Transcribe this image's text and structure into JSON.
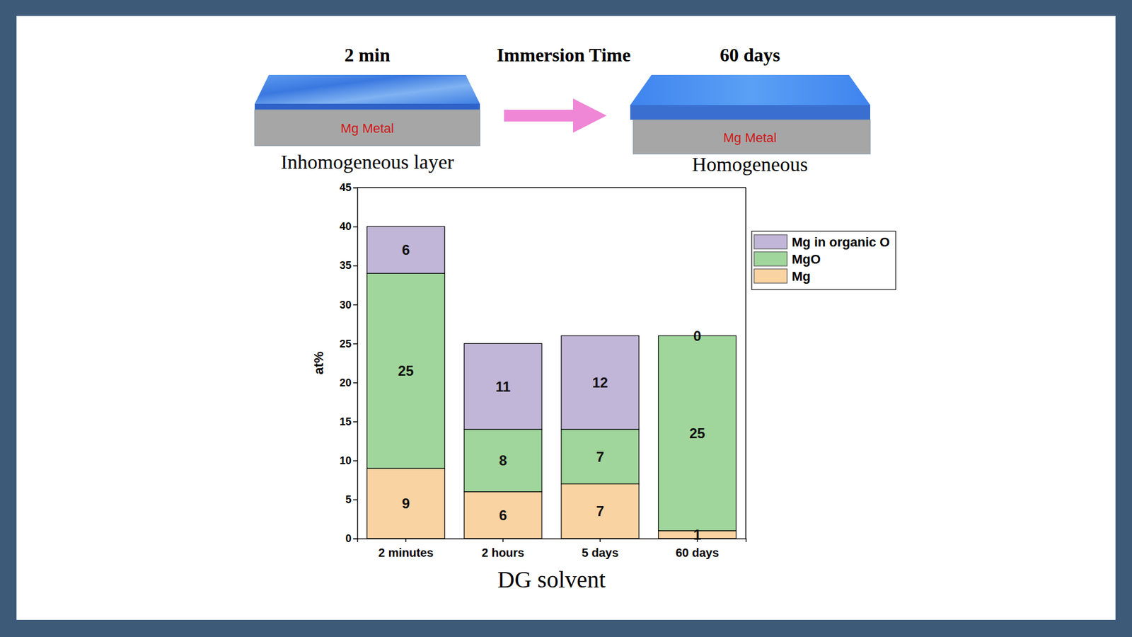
{
  "chart_data": {
    "type": "bar",
    "stacked": true,
    "data_labels": true,
    "categories": [
      "2 minutes",
      "2 hours",
      "5 days",
      "60 days"
    ],
    "series": [
      {
        "name": "Mg",
        "color": "#fad3a3",
        "values": [
          9,
          6,
          7,
          1
        ]
      },
      {
        "name": "MgO",
        "color": "#a0d69b",
        "values": [
          25,
          8,
          7,
          25
        ]
      },
      {
        "name": "Mg in organic O",
        "color": "#c1b5d8",
        "values": [
          6,
          11,
          12,
          0
        ]
      }
    ],
    "x_label": "DG solvent",
    "y_label": "at%",
    "ylim": [
      0,
      45
    ],
    "yticks": [
      0,
      5,
      10,
      15,
      20,
      25,
      30,
      35,
      40,
      45
    ],
    "grid": false,
    "legend": "right"
  },
  "diagram": {
    "arrow_label": "Immersion Time",
    "panels": [
      {
        "time": "2 min",
        "metal": "Mg Metal",
        "caption": "Inhomogeneous layer"
      },
      {
        "time": "60 days",
        "metal": "Mg Metal",
        "caption": "Homogeneous"
      }
    ]
  }
}
